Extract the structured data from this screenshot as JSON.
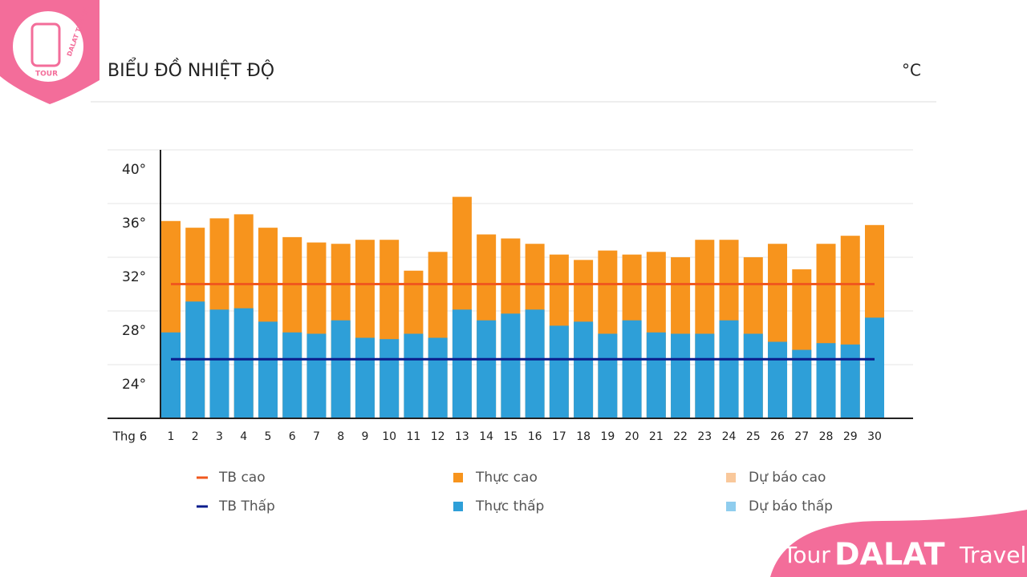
{
  "chart_data": {
    "type": "bar",
    "title": "BIỂU ĐỒ NHIỆT ĐỘ",
    "unit": "°C",
    "x_label": "Thg 6",
    "categories": [
      "1",
      "2",
      "3",
      "4",
      "5",
      "6",
      "7",
      "8",
      "9",
      "10",
      "11",
      "12",
      "13",
      "14",
      "15",
      "16",
      "17",
      "18",
      "19",
      "20",
      "21",
      "22",
      "23",
      "24",
      "25",
      "26",
      "27",
      "28",
      "29",
      "30"
    ],
    "series": [
      {
        "name": "TB cao",
        "type": "line",
        "color": "#f0581e",
        "values": [
          30,
          30,
          30,
          30,
          30,
          30,
          30,
          30,
          30,
          30,
          30,
          30,
          30,
          30,
          30,
          30,
          30,
          30,
          30,
          30,
          30,
          30,
          30,
          30,
          30,
          30,
          30,
          30,
          30,
          30
        ]
      },
      {
        "name": "Thực cao",
        "type": "bar",
        "color": "#f7941d",
        "values": [
          34.7,
          34.2,
          34.9,
          35.2,
          34.2,
          33.5,
          33.1,
          33.0,
          33.3,
          33.3,
          31.0,
          32.4,
          36.5,
          33.7,
          33.4,
          33.0,
          32.2,
          31.8,
          32.5,
          32.2,
          32.4,
          32.0,
          33.3,
          33.3,
          32.0,
          33.0,
          31.1,
          33.0,
          33.6,
          34.4
        ]
      },
      {
        "name": "Dự báo cao",
        "type": "bar",
        "color": "#f9c89b",
        "values": [
          null,
          null,
          null,
          null,
          null,
          null,
          null,
          null,
          null,
          null,
          null,
          null,
          null,
          null,
          null,
          null,
          null,
          null,
          null,
          null,
          null,
          null,
          null,
          null,
          null,
          null,
          null,
          null,
          null,
          null
        ]
      },
      {
        "name": "TB Thấp",
        "type": "line",
        "color": "#0a1c8c",
        "values": [
          24.4,
          24.4,
          24.4,
          24.4,
          24.4,
          24.4,
          24.4,
          24.4,
          24.4,
          24.4,
          24.4,
          24.4,
          24.4,
          24.4,
          24.4,
          24.4,
          24.4,
          24.4,
          24.4,
          24.4,
          24.4,
          24.4,
          24.4,
          24.4,
          24.4,
          24.4,
          24.4,
          24.4,
          24.4,
          24.4
        ]
      },
      {
        "name": "Thực thấp",
        "type": "bar",
        "color": "#2e9fd8",
        "values": [
          26.4,
          28.7,
          28.1,
          28.2,
          27.2,
          26.4,
          26.3,
          27.3,
          26.0,
          25.9,
          26.3,
          26.0,
          28.1,
          27.3,
          27.8,
          28.1,
          26.9,
          27.2,
          26.3,
          27.3,
          26.4,
          26.3,
          26.3,
          27.3,
          26.3,
          25.7,
          25.1,
          25.6,
          25.5,
          27.5
        ]
      },
      {
        "name": "Dự báo thấp",
        "type": "bar",
        "color": "#8fcdee",
        "values": [
          null,
          null,
          null,
          null,
          null,
          null,
          null,
          null,
          null,
          null,
          null,
          null,
          null,
          null,
          null,
          null,
          null,
          null,
          null,
          null,
          null,
          null,
          null,
          null,
          null,
          null,
          null,
          null,
          null,
          null
        ]
      }
    ],
    "ylim": [
      20,
      40
    ],
    "yticks": [
      {
        "value": 24,
        "label": "24°"
      },
      {
        "value": 28,
        "label": "28°"
      },
      {
        "value": 32,
        "label": "32°"
      },
      {
        "value": 36,
        "label": "36°"
      },
      {
        "value": 40,
        "label": "40°"
      }
    ],
    "grid": true
  },
  "brand": {
    "logo_top": "TOUR",
    "logo_side": "DALAT TRAVEL",
    "footer_left": "Tour",
    "footer_mid": "DALAT",
    "footer_right": "Travel"
  }
}
